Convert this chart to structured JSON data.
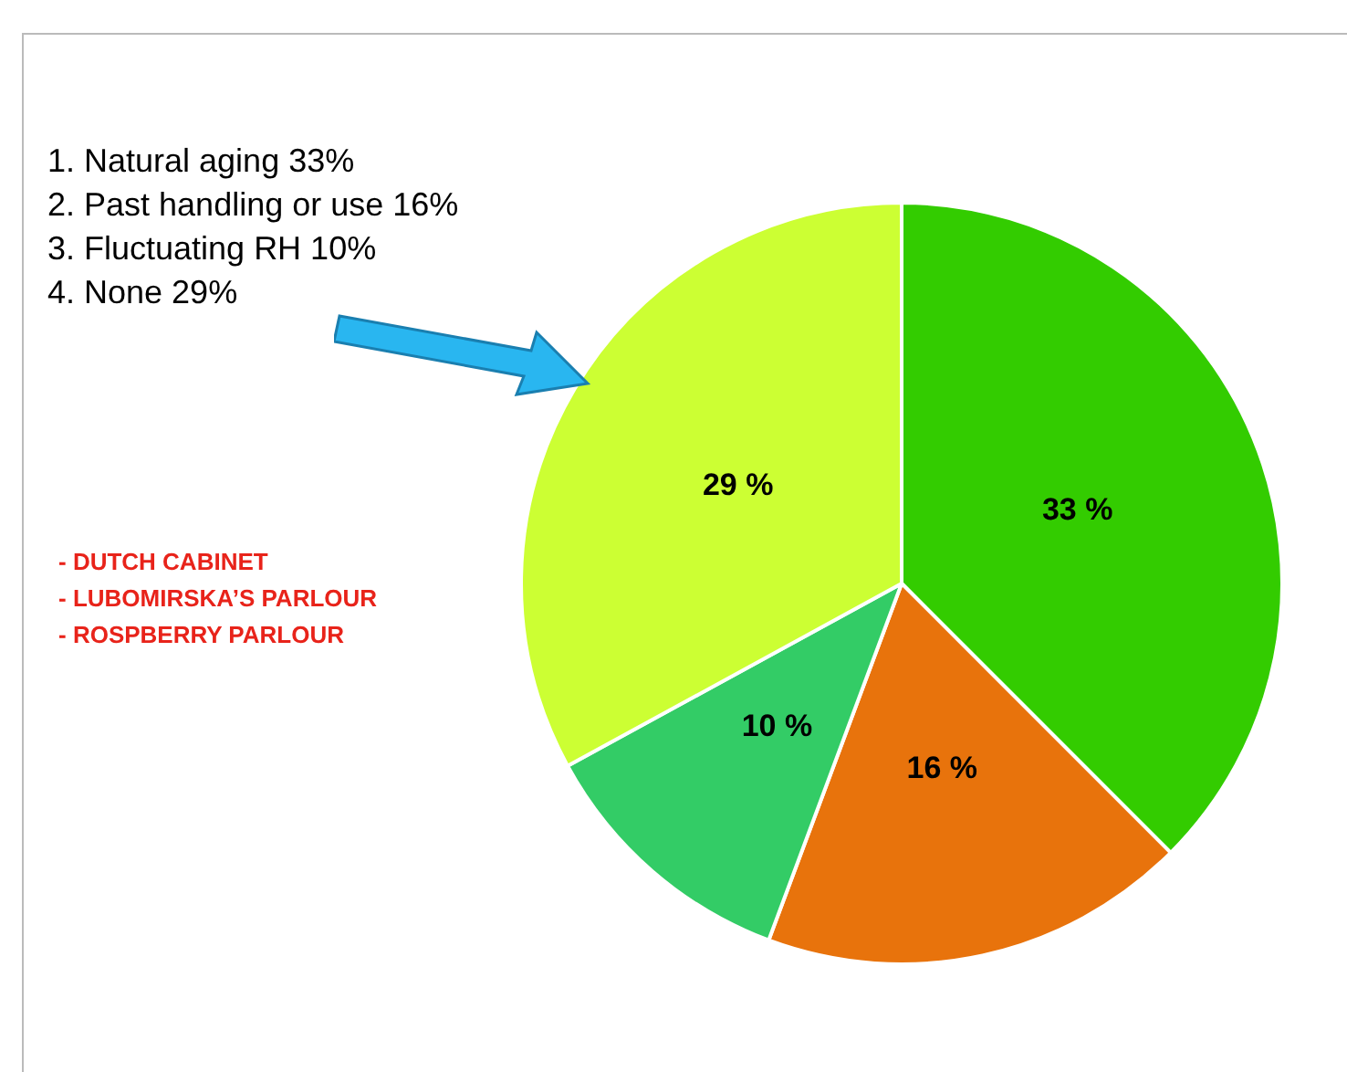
{
  "chart_data": {
    "type": "pie",
    "categories": [
      null,
      null,
      null,
      null
    ],
    "values": [
      33,
      16,
      10,
      29
    ],
    "colors": [
      "#33cc00",
      "#e8730c",
      "#33cc66",
      "#ccff33"
    ],
    "value_labels": [
      "33 %",
      "16 %",
      "10 %",
      "29 %"
    ],
    "legend": false,
    "annotations": [
      "1. Natural aging 33%",
      "2. Past handling or use 16%",
      "3. Fluctuating RH 10%",
      "4. None  29%",
      "- DUTCH CABINET",
      "- LUBOMIRSKA’S PARLOUR",
      "- ROSPBERRY PARLOUR"
    ]
  }
}
